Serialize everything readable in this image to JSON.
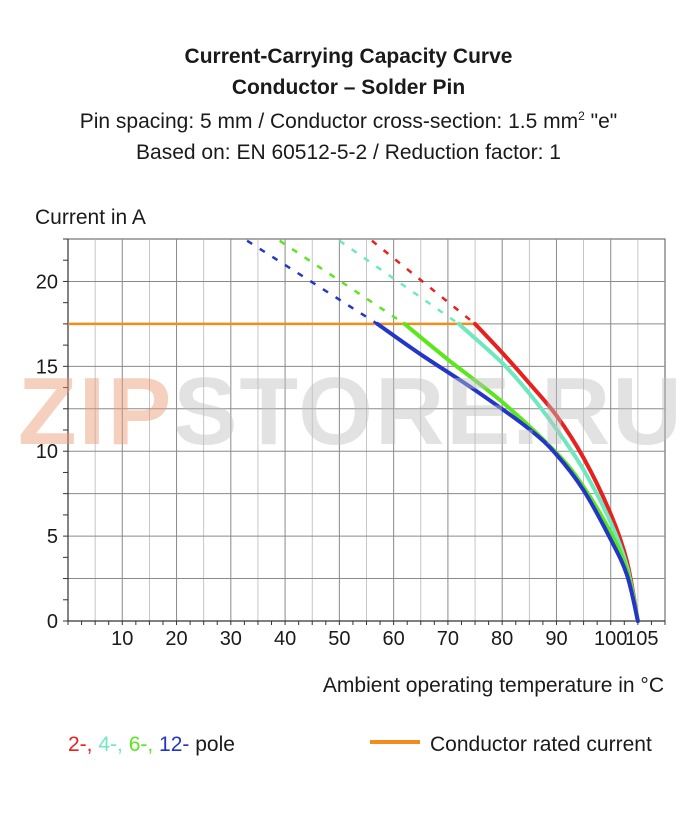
{
  "title": {
    "line1": "Current-Carrying Capacity Curve",
    "line2": "Conductor – Solder Pin",
    "line3_pre": "Pin spacing: 5 mm / Conductor cross-section: 1.5 mm",
    "line3_sup": "2",
    "line3_post": " \"e\"",
    "line4": "Based on: EN 60512-5-2 / Reduction factor: 1"
  },
  "watermark": {
    "prefix": "ZIP",
    "rest": "STORE.RU"
  },
  "legend": {
    "poles": [
      {
        "label": "2-,",
        "color": "#e8201e"
      },
      {
        "label": " 4-,",
        "color": "#6fe8c0"
      },
      {
        "label": " 6-,",
        "color": "#5ce61e"
      },
      {
        "label": " 12-",
        "color": "#2436c8"
      },
      {
        "label": " pole",
        "color": "#1a1a1a"
      }
    ],
    "rated": "Conductor rated current"
  },
  "chart_data": {
    "type": "line",
    "title": "Current-Carrying Capacity Curve",
    "xlabel": "Ambient operating temperature in °C",
    "ylabel": "Current in A",
    "xlim": [
      0,
      110
    ],
    "ylim": [
      0,
      22.5
    ],
    "x_ticks": [
      10,
      20,
      30,
      40,
      50,
      60,
      70,
      80,
      90,
      100,
      105
    ],
    "y_ticks": [
      0,
      5,
      10,
      15,
      20
    ],
    "grid": true,
    "rated_current": {
      "value": 17.5,
      "color": "#f28c1e"
    },
    "series": [
      {
        "name": "2-pole",
        "color": "#e8201e",
        "x": [
          75,
          80,
          85,
          90,
          95,
          100,
          103,
          105
        ],
        "y": [
          17.5,
          15.8,
          14.0,
          12.1,
          9.6,
          6.3,
          3.5,
          0
        ],
        "dashed_x": [
          56,
          75
        ],
        "dashed_y": [
          22.4,
          17.5
        ]
      },
      {
        "name": "4-pole",
        "color": "#6fe8c0",
        "x": [
          72,
          80,
          85,
          90,
          95,
          100,
          103,
          105
        ],
        "y": [
          17.5,
          15.2,
          13.4,
          11.3,
          8.9,
          5.8,
          3.2,
          0
        ],
        "dashed_x": [
          50,
          72
        ],
        "dashed_y": [
          22.4,
          17.5
        ]
      },
      {
        "name": "6-pole",
        "color": "#5ce61e",
        "x": [
          62,
          70,
          80,
          90,
          95,
          100,
          103,
          105
        ],
        "y": [
          17.5,
          15.4,
          12.9,
          9.9,
          7.9,
          5.2,
          3.0,
          0
        ],
        "dashed_x": [
          39,
          62
        ],
        "dashed_y": [
          22.4,
          17.5
        ]
      },
      {
        "name": "12-pole",
        "color": "#2436c8",
        "x": [
          57,
          65,
          75,
          85,
          90,
          95,
          100,
          103,
          105
        ],
        "y": [
          17.5,
          15.7,
          13.6,
          11.3,
          9.8,
          7.7,
          4.8,
          2.7,
          0
        ],
        "dashed_x": [
          33,
          57
        ],
        "dashed_y": [
          22.4,
          17.5
        ]
      }
    ]
  }
}
